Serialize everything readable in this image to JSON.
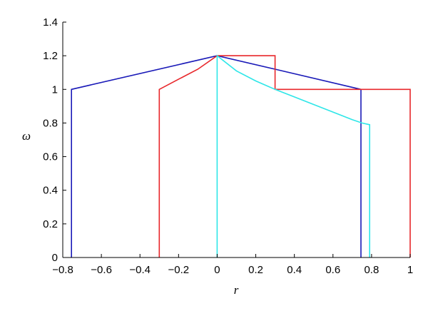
{
  "chart_data": {
    "type": "line",
    "title": "",
    "xlabel": "r",
    "ylabel": "ω",
    "xlim": [
      -0.8,
      1
    ],
    "ylim": [
      0,
      1.4
    ],
    "xticks": [
      -0.8,
      -0.6,
      -0.4,
      -0.2,
      0,
      0.2,
      0.4,
      0.6,
      0.8,
      1
    ],
    "xtick_labels": [
      "−0.8",
      "−0.6",
      "−0.4",
      "−0.2",
      "0",
      "0.2",
      "0.4",
      "0.6",
      "0.8",
      "1"
    ],
    "yticks": [
      0,
      0.2,
      0.4,
      0.6,
      0.8,
      1,
      1.2,
      1.4
    ],
    "ytick_labels": [
      "0",
      "0.2",
      "0.4",
      "0.6",
      "0.8",
      "1",
      "1.2",
      "1.4"
    ],
    "grid": false,
    "legend": "none",
    "series": [
      {
        "color": "#1a1ab8",
        "points": [
          [
            -0.755,
            0
          ],
          [
            -0.755,
            1.0
          ],
          [
            0.0,
            1.2
          ],
          [
            0.3,
            1.12
          ],
          [
            0.745,
            1.0
          ],
          [
            0.745,
            0
          ]
        ]
      },
      {
        "color": "#e8272b",
        "points": [
          [
            -0.3,
            0
          ],
          [
            -0.3,
            1.0
          ],
          [
            -0.2,
            1.06
          ],
          [
            -0.1,
            1.12
          ],
          [
            0.0,
            1.2
          ],
          [
            0.3,
            1.2
          ],
          [
            0.3,
            1.0
          ],
          [
            1.0,
            1.0
          ],
          [
            1.0,
            0
          ]
        ]
      },
      {
        "color": "#2ee6e8",
        "points": [
          [
            0.0,
            0
          ],
          [
            0.0,
            1.2
          ],
          [
            0.1,
            1.11
          ],
          [
            0.2,
            1.05
          ],
          [
            0.3,
            1.0
          ],
          [
            0.4,
            0.955
          ],
          [
            0.5,
            0.91
          ],
          [
            0.6,
            0.865
          ],
          [
            0.7,
            0.82
          ],
          [
            0.75,
            0.8
          ],
          [
            0.79,
            0.79
          ],
          [
            0.79,
            0.6
          ],
          [
            0.79,
            0
          ]
        ]
      }
    ]
  }
}
